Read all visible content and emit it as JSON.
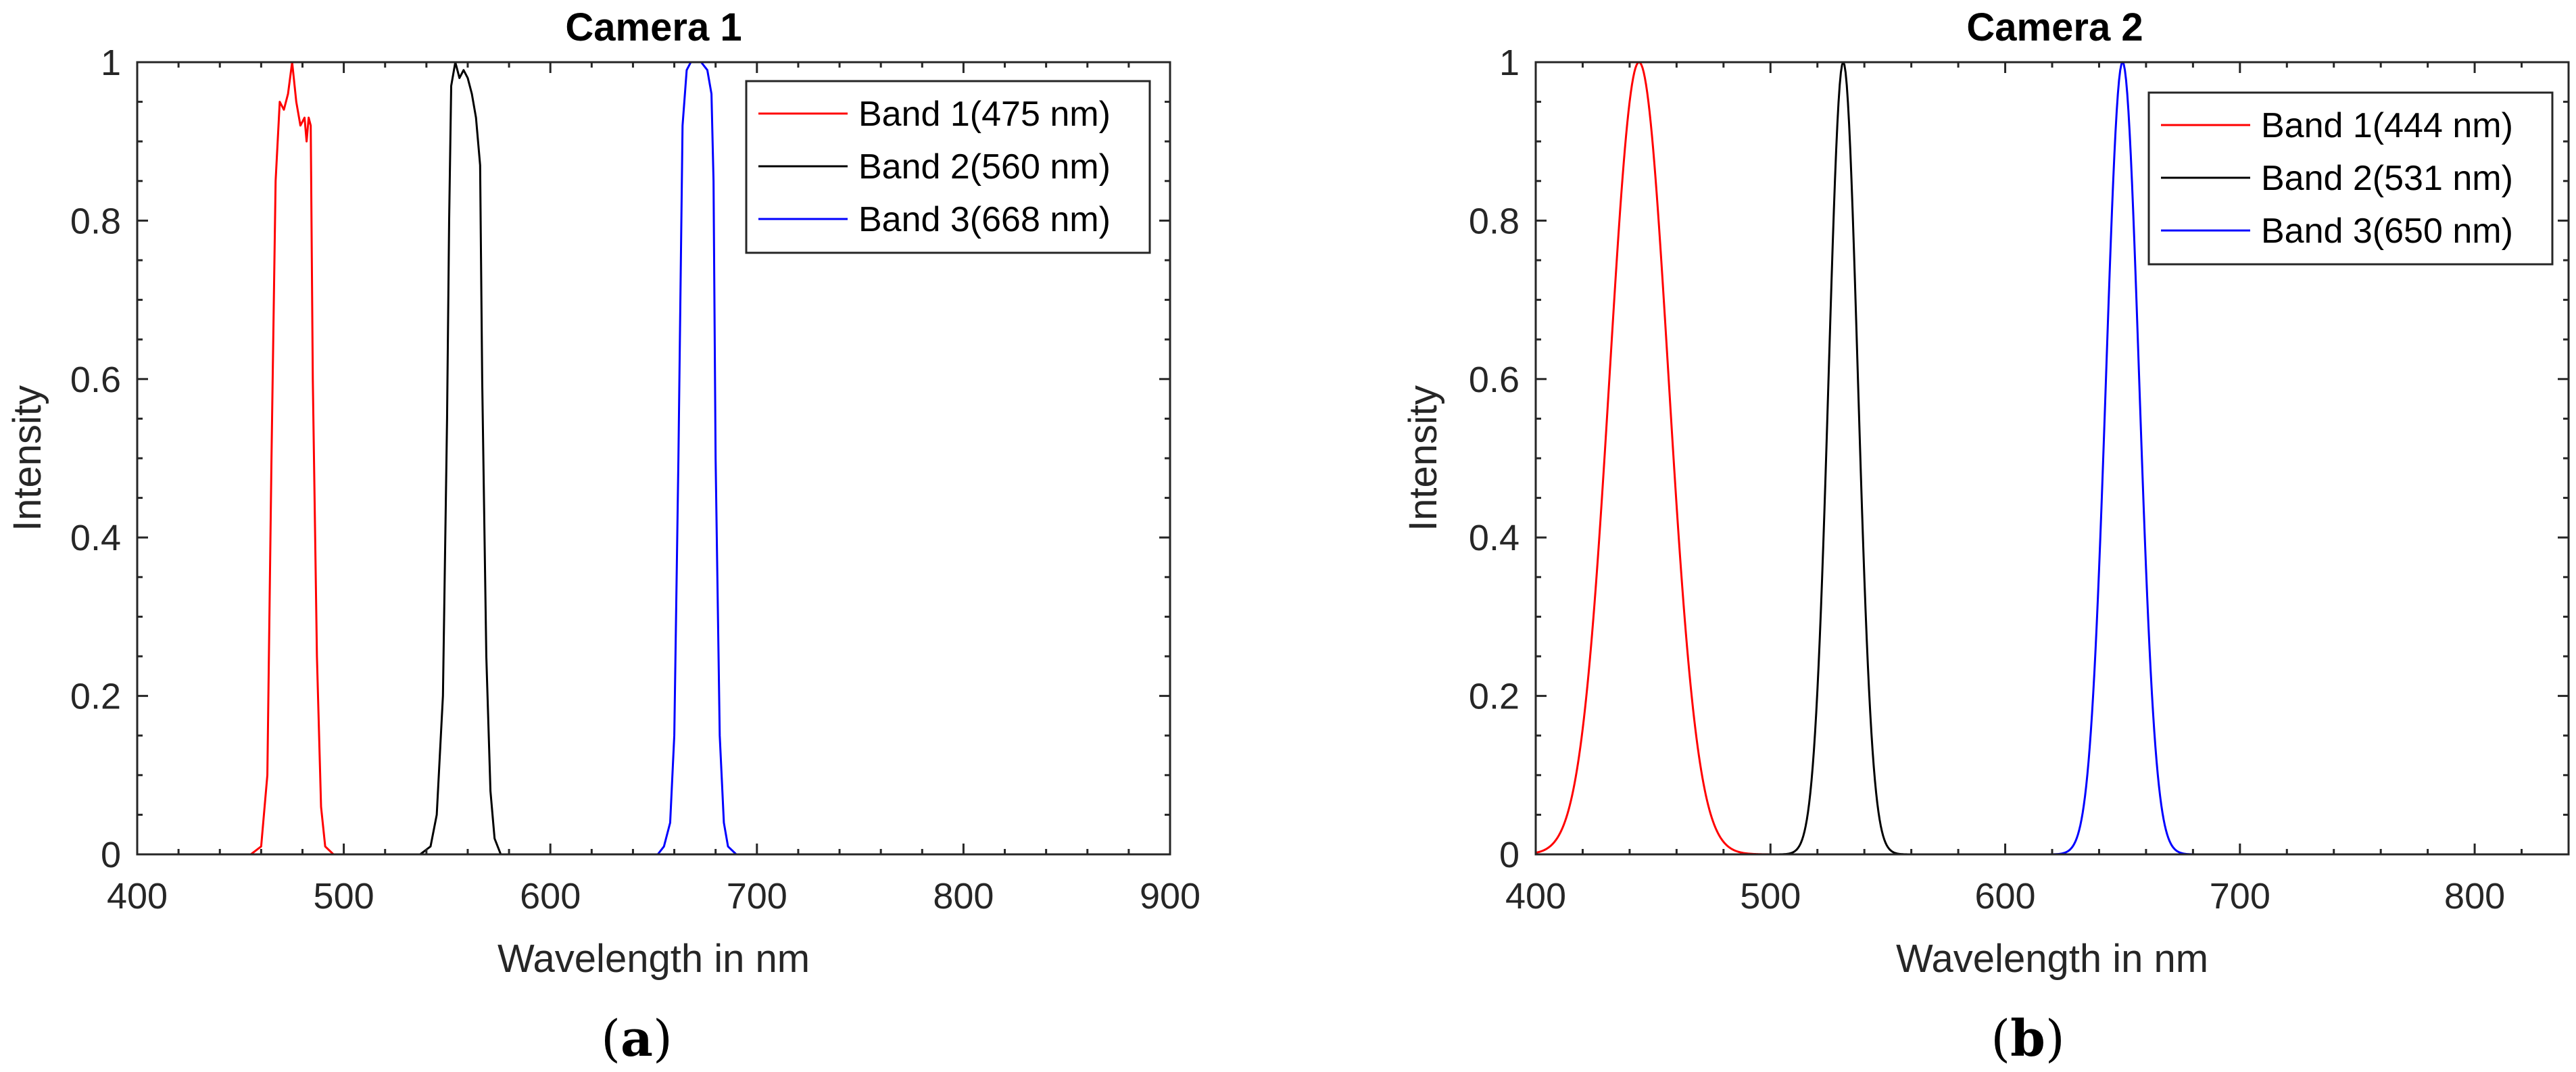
{
  "chart_data": [
    {
      "type": "line",
      "title": "Camera 1",
      "xlabel": "Wavelength in nm",
      "ylabel": "Intensity",
      "xlim": [
        400,
        900
      ],
      "ylim": [
        0,
        1
      ],
      "xticks": [
        400,
        500,
        600,
        700,
        800,
        900
      ],
      "yticks": [
        0,
        0.2,
        0.4,
        0.6,
        0.8,
        1
      ],
      "ytick_labels": [
        "0",
        "0.2",
        "0.4",
        "0.6",
        "0.8",
        "1"
      ],
      "legend_position": "top-right",
      "caption": "(a)",
      "caption_letter": "a",
      "series": [
        {
          "name": "Band 1(475 nm)",
          "color": "#ff0000",
          "points": [
            [
              400,
              0
            ],
            [
              455,
              0
            ],
            [
              460,
              0.01
            ],
            [
              463,
              0.1
            ],
            [
              465,
              0.5
            ],
            [
              467,
              0.85
            ],
            [
              469,
              0.95
            ],
            [
              471,
              0.94
            ],
            [
              473,
              0.96
            ],
            [
              475,
              1.0
            ],
            [
              477,
              0.95
            ],
            [
              479,
              0.92
            ],
            [
              481,
              0.93
            ],
            [
              482,
              0.9
            ],
            [
              483,
              0.93
            ],
            [
              484,
              0.92
            ],
            [
              485,
              0.6
            ],
            [
              487,
              0.25
            ],
            [
              489,
              0.06
            ],
            [
              491,
              0.01
            ],
            [
              495,
              0
            ],
            [
              900,
              0
            ]
          ]
        },
        {
          "name": "Band 2(560 nm)",
          "color": "#000000",
          "points": [
            [
              400,
              0
            ],
            [
              537,
              0
            ],
            [
              542,
              0.01
            ],
            [
              545,
              0.05
            ],
            [
              548,
              0.2
            ],
            [
              550,
              0.55
            ],
            [
              551,
              0.8
            ],
            [
              552,
              0.97
            ],
            [
              554,
              1.0
            ],
            [
              556,
              0.98
            ],
            [
              558,
              0.99
            ],
            [
              560,
              0.98
            ],
            [
              562,
              0.96
            ],
            [
              564,
              0.93
            ],
            [
              566,
              0.87
            ],
            [
              567,
              0.6
            ],
            [
              569,
              0.25
            ],
            [
              571,
              0.08
            ],
            [
              573,
              0.02
            ],
            [
              576,
              0
            ],
            [
              900,
              0
            ]
          ]
        },
        {
          "name": "Band 3(668 nm)",
          "color": "#0000ff",
          "points": [
            [
              400,
              0
            ],
            [
              652,
              0
            ],
            [
              655,
              0.01
            ],
            [
              658,
              0.04
            ],
            [
              660,
              0.15
            ],
            [
              662,
              0.5
            ],
            [
              664,
              0.92
            ],
            [
              666,
              0.99
            ],
            [
              668,
              1.0
            ],
            [
              673,
              1.0
            ],
            [
              676,
              0.99
            ],
            [
              678,
              0.96
            ],
            [
              679,
              0.85
            ],
            [
              680,
              0.5
            ],
            [
              682,
              0.15
            ],
            [
              684,
              0.04
            ],
            [
              686,
              0.01
            ],
            [
              690,
              0
            ],
            [
              900,
              0
            ]
          ]
        }
      ]
    },
    {
      "type": "line",
      "title": "Camera 2",
      "xlabel": "Wavelength in nm",
      "ylabel": "Intensity",
      "xlim": [
        400,
        840
      ],
      "ylim": [
        0,
        1
      ],
      "xticks": [
        400,
        500,
        600,
        700,
        800
      ],
      "yticks": [
        0,
        0.2,
        0.4,
        0.6,
        0.8,
        1
      ],
      "ytick_labels": [
        "0",
        "0.2",
        "0.4",
        "0.6",
        "0.8",
        "1"
      ],
      "legend_position": "top-right",
      "caption": "(b)",
      "caption_letter": "b",
      "series": [
        {
          "name": "Band 1(444 nm)",
          "color": "#ff0000",
          "gaussian": {
            "center": 444,
            "sigma": 12.5
          }
        },
        {
          "name": "Band 2(531 nm)",
          "color": "#000000",
          "gaussian": {
            "center": 531,
            "sigma": 6.2
          }
        },
        {
          "name": "Band 3(650 nm)",
          "color": "#0000ff",
          "gaussian": {
            "center": 650,
            "sigma": 7.0
          }
        }
      ]
    }
  ]
}
